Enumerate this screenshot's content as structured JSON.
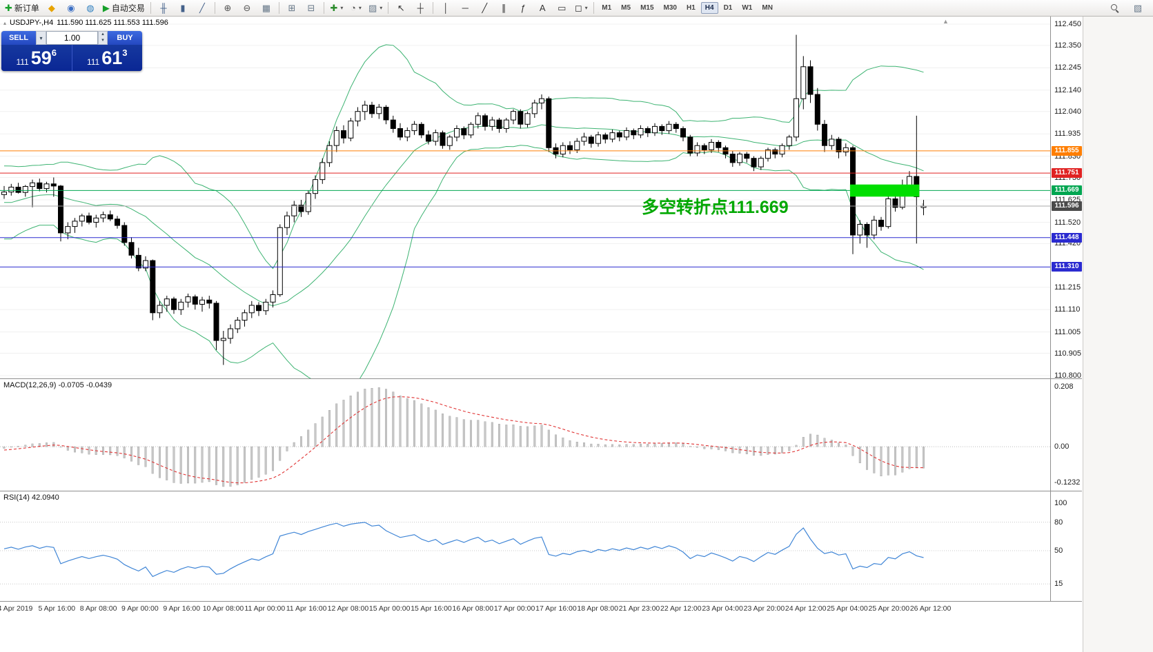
{
  "toolbar": {
    "groups": [
      {
        "name": "trade",
        "items": [
          {
            "name": "new-order-button",
            "glyph": "✚",
            "glyph_color": "#17a02b",
            "label": "新订单"
          },
          {
            "name": "charts-profile-icon",
            "glyph": "◆",
            "glyph_color": "#e7a300"
          },
          {
            "name": "market-watch-icon",
            "glyph": "◉",
            "glyph_color": "#3b6fc4"
          },
          {
            "name": "community-icon",
            "glyph": "◍",
            "glyph_color": "#2e7fbf"
          },
          {
            "name": "autotrading-button",
            "glyph": "▶",
            "glyph_color": "#17a02b",
            "label": "自动交易"
          }
        ]
      },
      {
        "name": "chart-type",
        "items": [
          {
            "name": "ohlc-bars-icon",
            "glyph": "╫",
            "glyph_color": "#44618a"
          },
          {
            "name": "candlestick-chart-icon",
            "glyph": "▮",
            "glyph_color": "#44618a"
          },
          {
            "name": "line-chart-icon",
            "glyph": "╱",
            "glyph_color": "#44618a"
          }
        ]
      },
      {
        "name": "zoom",
        "items": [
          {
            "name": "zoom-in-icon",
            "glyph": "⊕",
            "glyph_color": "#555555"
          },
          {
            "name": "zoom-out-icon",
            "glyph": "⊖",
            "glyph_color": "#555555"
          },
          {
            "name": "grid-icon",
            "glyph": "▦",
            "glyph_color": "#667788"
          }
        ]
      },
      {
        "name": "windows",
        "items": [
          {
            "name": "tile-windows-icon",
            "glyph": "⊞",
            "glyph_color": "#667788"
          },
          {
            "name": "cascade-windows-icon",
            "glyph": "⊟",
            "glyph_color": "#667788"
          }
        ]
      },
      {
        "name": "insert",
        "items": [
          {
            "name": "indicators-icon",
            "glyph": "✚",
            "glyph_color": "#2c8c2c",
            "dropdown": true
          },
          {
            "name": "periods-icon",
            "glyph": "◔",
            "glyph_color": "#555555",
            "dropdown": true
          },
          {
            "name": "templates-icon",
            "glyph": "▨",
            "glyph_color": "#667788",
            "dropdown": true
          }
        ]
      },
      {
        "name": "cursor",
        "items": [
          {
            "name": "cursor-icon",
            "glyph": "↖",
            "glyph_color": "#333333"
          },
          {
            "name": "crosshair-icon",
            "glyph": "┼",
            "glyph_color": "#333333"
          }
        ]
      },
      {
        "name": "draw",
        "items": [
          {
            "name": "vertical-line-icon",
            "glyph": "│",
            "glyph_color": "#333333"
          },
          {
            "name": "horizontal-line-icon",
            "glyph": "─",
            "glyph_color": "#333333"
          },
          {
            "name": "trendline-icon",
            "glyph": "╱",
            "glyph_color": "#333333"
          },
          {
            "name": "channel-icon",
            "glyph": "∥",
            "glyph_color": "#333333"
          },
          {
            "name": "fibonacci-icon",
            "glyph": "ƒ",
            "glyph_color": "#333333"
          },
          {
            "name": "text-icon",
            "glyph": "A",
            "glyph_color": "#333333"
          },
          {
            "name": "label-icon",
            "glyph": "▭",
            "glyph_color": "#333333"
          },
          {
            "name": "shapes-icon",
            "glyph": "◻",
            "glyph_color": "#333333",
            "dropdown": true
          }
        ]
      },
      {
        "name": "timeframes",
        "type": "tf",
        "items": [
          "M1",
          "M5",
          "M15",
          "M30",
          "H1",
          "H4",
          "D1",
          "W1",
          "MN"
        ],
        "active": "H4"
      }
    ],
    "right_items": [
      {
        "name": "search-icon",
        "kind": "mag"
      },
      {
        "name": "layers-icon",
        "glyph": "▧",
        "glyph_color": "#667788"
      }
    ]
  },
  "chart": {
    "symbol": "USDJPY-,H4",
    "ohlc": "111.590 111.625 111.553 111.596",
    "symbol_arrow": "▴",
    "shift_marker": "▲",
    "trade_panel": {
      "sell_label": "SELL",
      "buy_label": "BUY",
      "volume": "1.00",
      "dropdown_glyph": "▾",
      "step_up_glyph": "▴",
      "step_down_glyph": "▾",
      "sell_price_prefix": "111",
      "sell_price_big": "59",
      "sell_price_sup": "6",
      "buy_price_prefix": "111",
      "buy_price_big": "61",
      "buy_price_sup": "3"
    },
    "annotation": {
      "text": "多空转折点111.669",
      "color": "#00A800"
    }
  },
  "chart_data": {
    "type": "candlestick",
    "symbol": "USDJPY",
    "timeframe": "H4",
    "title": "USDJPY-,H4 111.590 111.625 111.553 111.596",
    "ohlc_current": {
      "open": 111.59,
      "high": 111.625,
      "low": 111.553,
      "close": 111.596
    },
    "price_range": [
      110.8,
      112.45
    ],
    "price_ticks": [
      "112.450",
      "112.350",
      "112.245",
      "112.140",
      "112.040",
      "111.935",
      "111.830",
      "111.730",
      "111.625",
      "111.520",
      "111.420",
      "111.215",
      "111.110",
      "111.005",
      "110.905",
      "110.800"
    ],
    "time_labels": [
      "4 Apr 2019",
      "5 Apr 16:00",
      "8 Apr 08:00",
      "9 Apr 00:00",
      "9 Apr 16:00",
      "10 Apr 08:00",
      "11 Apr 00:00",
      "11 Apr 16:00",
      "12 Apr 08:00",
      "15 Apr 00:00",
      "15 Apr 16:00",
      "16 Apr 08:00",
      "17 Apr 00:00",
      "17 Apr 16:00",
      "18 Apr 08:00",
      "21 Apr 23:00",
      "22 Apr 12:00",
      "23 Apr 04:00",
      "23 Apr 20:00",
      "24 Apr 12:00",
      "25 Apr 04:00",
      "25 Apr 20:00",
      "26 Apr 12:00"
    ],
    "candles": [
      [
        111.65,
        111.69,
        111.63,
        111.662
      ],
      [
        111.662,
        111.7,
        111.645,
        111.685
      ],
      [
        111.685,
        111.705,
        111.655,
        111.66
      ],
      [
        111.66,
        111.695,
        111.64,
        111.688
      ],
      [
        111.688,
        111.72,
        111.59,
        111.705
      ],
      [
        111.705,
        111.725,
        111.665,
        111.678
      ],
      [
        111.678,
        111.71,
        111.66,
        111.7
      ],
      [
        111.7,
        111.73,
        111.64,
        111.69
      ],
      [
        111.69,
        111.695,
        111.43,
        111.47
      ],
      [
        111.47,
        111.52,
        111.44,
        111.5
      ],
      [
        111.5,
        111.54,
        111.47,
        111.525
      ],
      [
        111.525,
        111.56,
        111.5,
        111.55
      ],
      [
        111.55,
        111.565,
        111.51,
        111.52
      ],
      [
        111.52,
        111.555,
        111.495,
        111.54
      ],
      [
        111.54,
        111.57,
        111.52,
        111.555
      ],
      [
        111.555,
        111.575,
        111.525,
        111.535
      ],
      [
        111.535,
        111.55,
        111.49,
        111.505
      ],
      [
        111.505,
        111.52,
        111.41,
        111.425
      ],
      [
        111.425,
        111.45,
        111.35,
        111.365
      ],
      [
        111.365,
        111.4,
        111.29,
        111.305
      ],
      [
        111.305,
        111.36,
        111.29,
        111.34
      ],
      [
        111.34,
        111.345,
        111.06,
        111.095
      ],
      [
        111.095,
        111.15,
        111.07,
        111.13
      ],
      [
        111.13,
        111.175,
        111.1,
        111.16
      ],
      [
        111.16,
        111.17,
        111.09,
        111.11
      ],
      [
        111.11,
        111.16,
        111.085,
        111.145
      ],
      [
        111.145,
        111.185,
        111.12,
        111.17
      ],
      [
        111.17,
        111.18,
        111.11,
        111.135
      ],
      [
        111.135,
        111.17,
        111.1,
        111.155
      ],
      [
        111.155,
        111.175,
        111.115,
        111.14
      ],
      [
        111.14,
        111.15,
        110.92,
        110.965
      ],
      [
        110.965,
        111.01,
        110.85,
        110.975
      ],
      [
        110.975,
        111.04,
        110.95,
        111.02
      ],
      [
        111.02,
        111.075,
        111.0,
        111.06
      ],
      [
        111.06,
        111.11,
        111.03,
        111.095
      ],
      [
        111.095,
        111.15,
        111.07,
        111.13
      ],
      [
        111.13,
        111.145,
        111.08,
        111.105
      ],
      [
        111.105,
        111.16,
        111.085,
        111.145
      ],
      [
        111.145,
        111.2,
        111.12,
        111.18
      ],
      [
        111.18,
        111.51,
        111.17,
        111.495
      ],
      [
        111.495,
        111.57,
        111.46,
        111.55
      ],
      [
        111.55,
        111.62,
        111.52,
        111.6
      ],
      [
        111.6,
        111.625,
        111.545,
        111.57
      ],
      [
        111.57,
        111.67,
        111.555,
        111.655
      ],
      [
        111.655,
        111.74,
        111.63,
        111.72
      ],
      [
        111.72,
        111.82,
        111.7,
        111.8
      ],
      [
        111.8,
        111.9,
        111.78,
        111.88
      ],
      [
        111.88,
        111.97,
        111.85,
        111.95
      ],
      [
        111.95,
        111.975,
        111.89,
        111.915
      ],
      [
        111.915,
        112.01,
        111.9,
        111.995
      ],
      [
        111.995,
        112.06,
        111.97,
        112.04
      ],
      [
        112.04,
        112.09,
        112.0,
        112.07
      ],
      [
        112.07,
        112.085,
        112.01,
        112.03
      ],
      [
        112.03,
        112.075,
        112.005,
        112.06
      ],
      [
        112.06,
        112.07,
        111.98,
        112.0
      ],
      [
        112.0,
        112.02,
        111.94,
        111.96
      ],
      [
        111.96,
        111.985,
        111.905,
        111.92
      ],
      [
        111.92,
        111.965,
        111.9,
        111.95
      ],
      [
        111.95,
        111.995,
        111.93,
        111.98
      ],
      [
        111.98,
        111.99,
        111.915,
        111.93
      ],
      [
        111.93,
        111.95,
        111.885,
        111.9
      ],
      [
        111.9,
        111.955,
        111.88,
        111.94
      ],
      [
        111.94,
        111.95,
        111.865,
        111.88
      ],
      [
        111.88,
        111.93,
        111.86,
        111.92
      ],
      [
        111.92,
        111.975,
        111.9,
        111.96
      ],
      [
        111.96,
        111.97,
        111.91,
        111.93
      ],
      [
        111.93,
        111.99,
        111.915,
        111.98
      ],
      [
        111.98,
        112.035,
        111.96,
        112.02
      ],
      [
        112.02,
        112.03,
        111.95,
        111.97
      ],
      [
        111.97,
        112.015,
        111.95,
        112.0
      ],
      [
        112.0,
        112.01,
        111.94,
        111.96
      ],
      [
        111.96,
        112.01,
        111.94,
        112.0
      ],
      [
        112.0,
        112.05,
        111.98,
        112.04
      ],
      [
        112.04,
        112.05,
        111.96,
        111.98
      ],
      [
        111.98,
        112.04,
        111.965,
        112.03
      ],
      [
        112.03,
        112.095,
        112.01,
        112.08
      ],
      [
        112.08,
        112.12,
        112.05,
        112.1
      ],
      [
        112.1,
        112.11,
        111.85,
        111.87
      ],
      [
        111.87,
        111.89,
        111.82,
        111.84
      ],
      [
        111.84,
        111.895,
        111.825,
        111.88
      ],
      [
        111.88,
        111.9,
        111.84,
        111.86
      ],
      [
        111.86,
        111.915,
        111.845,
        111.9
      ],
      [
        111.9,
        111.94,
        111.88,
        111.92
      ],
      [
        111.92,
        111.93,
        111.87,
        111.89
      ],
      [
        111.89,
        111.945,
        111.875,
        111.93
      ],
      [
        111.93,
        111.94,
        111.89,
        111.91
      ],
      [
        111.91,
        111.955,
        111.895,
        111.94
      ],
      [
        111.94,
        111.95,
        111.9,
        111.92
      ],
      [
        111.92,
        111.965,
        111.905,
        111.95
      ],
      [
        111.95,
        111.96,
        111.91,
        111.93
      ],
      [
        111.93,
        111.975,
        111.915,
        111.96
      ],
      [
        111.96,
        111.97,
        111.92,
        111.94
      ],
      [
        111.94,
        111.985,
        111.925,
        111.97
      ],
      [
        111.97,
        111.98,
        111.93,
        111.95
      ],
      [
        111.95,
        111.995,
        111.935,
        111.98
      ],
      [
        111.98,
        111.99,
        111.94,
        111.96
      ],
      [
        111.96,
        111.97,
        111.9,
        111.92
      ],
      [
        111.92,
        111.93,
        111.83,
        111.845
      ],
      [
        111.845,
        111.895,
        111.83,
        111.88
      ],
      [
        111.88,
        111.89,
        111.84,
        111.86
      ],
      [
        111.86,
        111.91,
        111.845,
        111.895
      ],
      [
        111.895,
        111.905,
        111.85,
        111.87
      ],
      [
        111.87,
        111.88,
        111.82,
        111.84
      ],
      [
        111.84,
        111.855,
        111.78,
        111.8
      ],
      [
        111.8,
        111.85,
        111.785,
        111.84
      ],
      [
        111.84,
        111.85,
        111.8,
        111.82
      ],
      [
        111.82,
        111.83,
        111.76,
        111.78
      ],
      [
        111.78,
        111.83,
        111.765,
        111.82
      ],
      [
        111.82,
        111.87,
        111.805,
        111.86
      ],
      [
        111.86,
        111.87,
        111.82,
        111.84
      ],
      [
        111.84,
        111.89,
        111.825,
        111.88
      ],
      [
        111.88,
        111.93,
        111.86,
        111.92
      ],
      [
        111.92,
        112.4,
        111.9,
        112.1
      ],
      [
        112.1,
        112.3,
        112.05,
        112.25
      ],
      [
        112.25,
        112.28,
        112.08,
        112.12
      ],
      [
        112.12,
        112.15,
        111.95,
        111.98
      ],
      [
        111.98,
        112.0,
        111.85,
        111.88
      ],
      [
        111.88,
        111.93,
        111.86,
        111.91
      ],
      [
        111.91,
        111.92,
        111.82,
        111.85
      ],
      [
        111.85,
        111.89,
        111.83,
        111.87
      ],
      [
        111.87,
        111.88,
        111.37,
        111.46
      ],
      [
        111.46,
        111.53,
        111.42,
        111.51
      ],
      [
        111.51,
        111.52,
        111.4,
        111.46
      ],
      [
        111.46,
        111.55,
        111.44,
        111.53
      ],
      [
        111.53,
        111.545,
        111.48,
        111.5
      ],
      [
        111.5,
        111.66,
        111.49,
        111.63
      ],
      [
        111.63,
        111.65,
        111.57,
        111.59
      ],
      [
        111.59,
        111.72,
        111.58,
        111.69
      ],
      [
        111.69,
        111.76,
        111.67,
        111.735
      ],
      [
        111.735,
        112.02,
        111.42,
        111.64
      ],
      [
        111.59,
        111.625,
        111.553,
        111.596
      ]
    ],
    "overlays": {
      "bollinger": {
        "period": 20,
        "deviations": 2,
        "color": "#3CB371"
      }
    },
    "levels": [
      {
        "label": "111.855",
        "price": 111.855,
        "line_color": "#FF7E00",
        "badge_color": "#FF7E00"
      },
      {
        "label": "111.751",
        "price": 111.751,
        "line_color": "#E02222",
        "badge_color": "#E02222"
      },
      {
        "label": "111.669",
        "price": 111.669,
        "line_color": "#00A651",
        "badge_color": "#00A651"
      },
      {
        "label": "111.596",
        "price": 111.596,
        "line_color": "#A8A8A8",
        "badge_color": "#4A4A4A",
        "kind": "bid"
      },
      {
        "label": "111.448",
        "price": 111.448,
        "line_color": "#2B2BD0",
        "badge_color": "#2B2BD0"
      },
      {
        "label": "111.310",
        "price": 111.31,
        "line_color": "#2B2BD0",
        "badge_color": "#2B2BD0"
      }
    ],
    "highlight_rect": {
      "index_from": 119.6,
      "index_to": 129.4,
      "price_low": 111.64,
      "price_high": 111.697,
      "color": "#00DE00"
    },
    "colors": {
      "background": "#FFFFFF",
      "grid": "#F0F0F0",
      "candle_up": "#FFFFFF",
      "candle_down": "#000000",
      "candle_outline": "#000000",
      "current_price_line": "#A8A8A8"
    },
    "indicators": [
      {
        "name": "macd",
        "label": "MACD(12,26,9) -0.0705 -0.0439",
        "params": [
          12,
          26,
          9
        ],
        "axis_ticks": [
          {
            "label": "0.208",
            "value": 0.208
          },
          {
            "label": "0.00",
            "value": 0
          },
          {
            "label": "-0.1232",
            "value": -0.1232
          }
        ],
        "histogram_color": "#C8C8C8",
        "histogram_edge": "#9E9E9E",
        "signal_color": "#E03232"
      },
      {
        "name": "rsi",
        "label": "RSI(14) 42.0940",
        "period": 14,
        "value": 42.094,
        "axis_ticks": [
          {
            "label": "100",
            "value": 100
          },
          {
            "label": "80",
            "value": 80
          },
          {
            "label": "50",
            "value": 50
          },
          {
            "label": "15",
            "value": 15
          }
        ],
        "level_lines": [
          80,
          50,
          15
        ],
        "line_color": "#3F85D6"
      }
    ]
  }
}
